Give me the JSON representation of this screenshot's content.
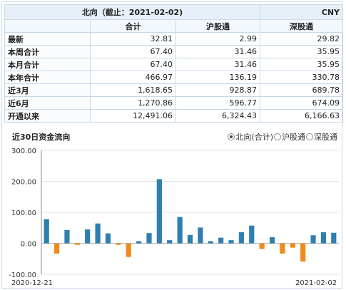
{
  "table": {
    "title": "北向（截止：2021-02-02)",
    "currency": "CNY",
    "columns": [
      "合计",
      "沪股通",
      "深股通"
    ],
    "rows": [
      {
        "label": "最新",
        "total": "32.81",
        "sh": "2.99",
        "sz": "29.82"
      },
      {
        "label": "本周合计",
        "total": "67.40",
        "sh": "31.46",
        "sz": "35.95"
      },
      {
        "label": "本月合计",
        "total": "67.40",
        "sh": "31.46",
        "sz": "35.95"
      },
      {
        "label": "本年合计",
        "total": "466.97",
        "sh": "136.19",
        "sz": "330.78"
      },
      {
        "label": "近3月",
        "total": "1,618.65",
        "sh": "928.87",
        "sz": "689.78"
      },
      {
        "label": "近6月",
        "total": "1,270.86",
        "sh": "596.77",
        "sz": "674.09"
      },
      {
        "label": "开通以来",
        "total": "12,491.06",
        "sh": "6,324.43",
        "sz": "6,166.63"
      }
    ]
  },
  "chart_header": {
    "title": "近30日资金流向",
    "options": [
      {
        "label": "北向(合计)",
        "selected": true
      },
      {
        "label": "沪股通",
        "selected": false
      },
      {
        "label": "深股通",
        "selected": false
      }
    ]
  },
  "chart_data": {
    "type": "bar",
    "title": "近30日资金流向",
    "ylim": [
      -100,
      300
    ],
    "yticks": [
      "300.00",
      "200.00",
      "100.00",
      "0.00",
      "-100.00"
    ],
    "x_start_label": "2020-12-21",
    "x_end_label": "2021-02-02",
    "grid": true,
    "positive_color": "#2e7fb0",
    "negative_color": "#f08a1c",
    "values": [
      78,
      -33,
      43,
      -5,
      45,
      64,
      32,
      -5,
      -44,
      7,
      33,
      207,
      10,
      85,
      27,
      51,
      7,
      18,
      10,
      36,
      57,
      -18,
      20,
      -33,
      -14,
      -59,
      26,
      36,
      34
    ]
  }
}
